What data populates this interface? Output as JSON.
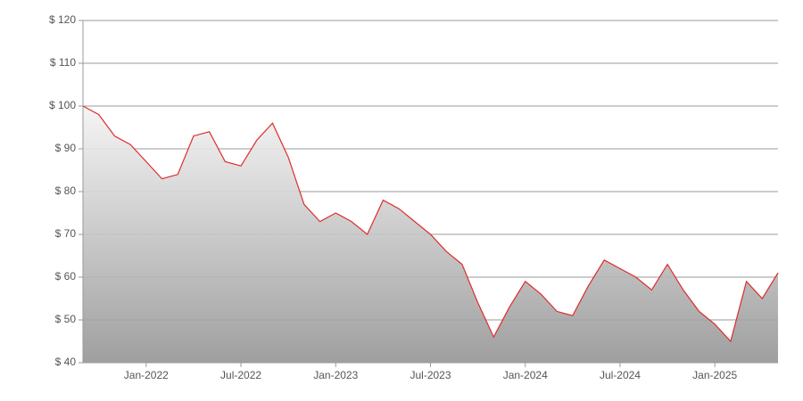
{
  "chart_data": {
    "type": "area",
    "x": [
      "2021-09",
      "2021-10",
      "2021-11",
      "2021-12",
      "2022-01",
      "2022-02",
      "2022-03",
      "2022-04",
      "2022-05",
      "2022-06",
      "2022-07",
      "2022-08",
      "2022-09",
      "2022-10",
      "2022-11",
      "2022-12",
      "2023-01",
      "2023-02",
      "2023-03",
      "2023-04",
      "2023-05",
      "2023-06",
      "2023-07",
      "2023-08",
      "2023-09",
      "2023-10",
      "2023-11",
      "2023-12",
      "2024-01",
      "2024-02",
      "2024-03",
      "2024-04",
      "2024-05",
      "2024-06",
      "2024-07",
      "2024-08",
      "2024-09",
      "2024-10",
      "2024-11",
      "2024-12",
      "2025-01",
      "2025-02",
      "2025-03",
      "2025-04",
      "2025-05"
    ],
    "series": [
      {
        "color": "#dd2c2c",
        "values": [
          100,
          98,
          93,
          91,
          87,
          83,
          84,
          93,
          94,
          87,
          86,
          92,
          96,
          88,
          77,
          73,
          75,
          73,
          70,
          78,
          76,
          73,
          70,
          66,
          63,
          54,
          46,
          53,
          59,
          56,
          52,
          51,
          58,
          64,
          62,
          60,
          57,
          63,
          57,
          52,
          49,
          45,
          59,
          55,
          61
        ]
      }
    ],
    "xlim": [
      "2021-09",
      "2025-05"
    ],
    "xticks": [
      {
        "value": "2022-01",
        "label": "Jan-2022"
      },
      {
        "value": "2022-07",
        "label": "Jul-2022"
      },
      {
        "value": "2023-01",
        "label": "Jan-2023"
      },
      {
        "value": "2023-07",
        "label": "Jul-2023"
      },
      {
        "value": "2024-01",
        "label": "Jan-2024"
      },
      {
        "value": "2024-07",
        "label": "Jul-2024"
      },
      {
        "value": "2025-01",
        "label": "Jan-2025"
      }
    ],
    "ylim": [
      40,
      120
    ],
    "yticks": [
      {
        "value": 40,
        "label": "$ 40"
      },
      {
        "value": 50,
        "label": "$ 50"
      },
      {
        "value": 60,
        "label": "$ 60"
      },
      {
        "value": 70,
        "label": "$ 70"
      },
      {
        "value": 80,
        "label": "$ 80"
      },
      {
        "value": 90,
        "label": "$ 90"
      },
      {
        "value": 100,
        "label": "$ 100"
      },
      {
        "value": 110,
        "label": "$ 110"
      },
      {
        "value": 120,
        "label": "$ 120"
      }
    ],
    "grid": true
  }
}
